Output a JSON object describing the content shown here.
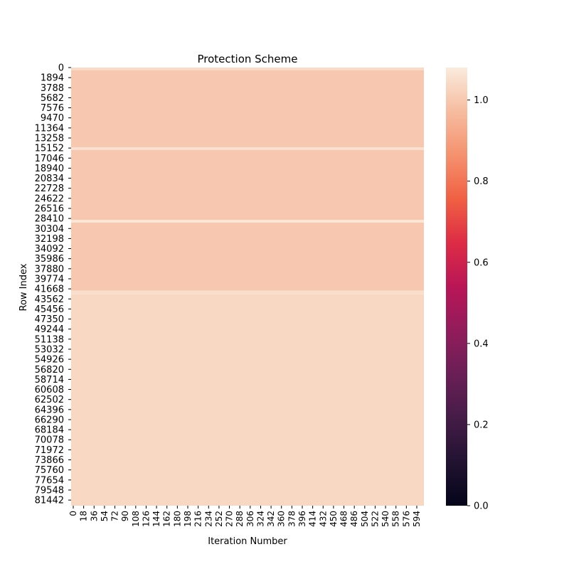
{
  "chart_data": {
    "type": "heatmap",
    "title": "Protection Scheme",
    "xlabel": "Iteration Number",
    "ylabel": "Row Index",
    "x_ticks": [
      0,
      18,
      36,
      54,
      72,
      90,
      108,
      126,
      144,
      162,
      180,
      198,
      216,
      234,
      252,
      270,
      288,
      306,
      324,
      342,
      360,
      378,
      396,
      414,
      432,
      450,
      468,
      486,
      504,
      522,
      540,
      558,
      576,
      594
    ],
    "x_range": [
      0,
      610
    ],
    "y_ticks": [
      0,
      1894,
      3788,
      5682,
      7576,
      9470,
      11364,
      13258,
      15152,
      17046,
      18940,
      20834,
      22728,
      24622,
      26516,
      28410,
      30304,
      32198,
      34092,
      35986,
      37880,
      39774,
      41668,
      43562,
      45456,
      47350,
      49244,
      51138,
      53032,
      54926,
      56820,
      58714,
      60608,
      62502,
      64396,
      66290,
      68184,
      70078,
      71972,
      73866,
      75760,
      77654,
      79548,
      81442
    ],
    "y_range": [
      0,
      82500
    ],
    "colorbar": {
      "min": 0.0,
      "max": 1.08,
      "ticks": [
        0.0,
        0.2,
        0.4,
        0.6,
        0.8,
        1.0
      ],
      "tick_labels": [
        "0.0",
        "0.2",
        "0.4",
        "0.6",
        "0.8",
        "1.0"
      ],
      "colormap": "rocket"
    },
    "row_bands": [
      {
        "from": 0,
        "to": 500,
        "value": 1.04
      },
      {
        "from": 500,
        "to": 15000,
        "value": 1.0
      },
      {
        "from": 15000,
        "to": 15500,
        "value": 1.06
      },
      {
        "from": 15500,
        "to": 28700,
        "value": 1.0
      },
      {
        "from": 28700,
        "to": 29200,
        "value": 1.07
      },
      {
        "from": 29200,
        "to": 42000,
        "value": 1.0
      },
      {
        "from": 42000,
        "to": 42700,
        "value": 1.05
      },
      {
        "from": 42700,
        "to": 82500,
        "value": 1.035
      }
    ]
  }
}
